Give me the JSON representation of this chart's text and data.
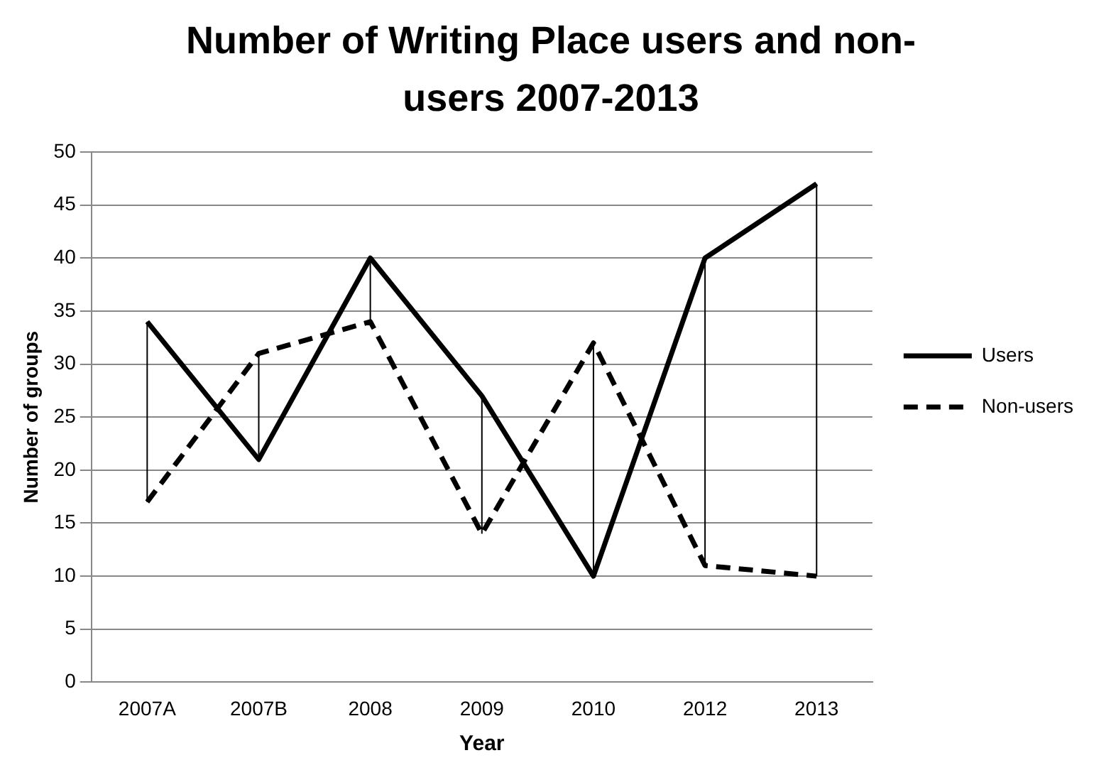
{
  "chart_data": {
    "type": "line",
    "title": "Number of Writing Place users and non-users 2007-2013",
    "xlabel": "Year",
    "ylabel": "Number of groups",
    "categories": [
      "2007A",
      "2007B",
      "2008",
      "2009",
      "2010",
      "2012",
      "2013"
    ],
    "series": [
      {
        "name": "Users",
        "color": "#000000",
        "values": [
          34,
          21,
          40,
          27,
          10,
          40,
          47
        ],
        "line_style": "solid",
        "errors": [
          [
            17,
            34
          ],
          [
            21,
            31
          ],
          [
            34,
            40
          ],
          [
            14,
            27
          ],
          [
            10,
            32
          ],
          [
            11,
            40
          ],
          [
            10,
            47
          ]
        ]
      },
      {
        "name": "Non-users",
        "color": "#000000",
        "values": [
          17,
          31,
          34,
          14,
          32,
          11,
          10
        ],
        "line_style": "dashed"
      }
    ],
    "ylim": [
      0,
      50
    ],
    "yticks": [
      0,
      5,
      10,
      15,
      20,
      25,
      30,
      35,
      40,
      45,
      50
    ],
    "grid": "y",
    "legend": "right",
    "marker": "none"
  }
}
